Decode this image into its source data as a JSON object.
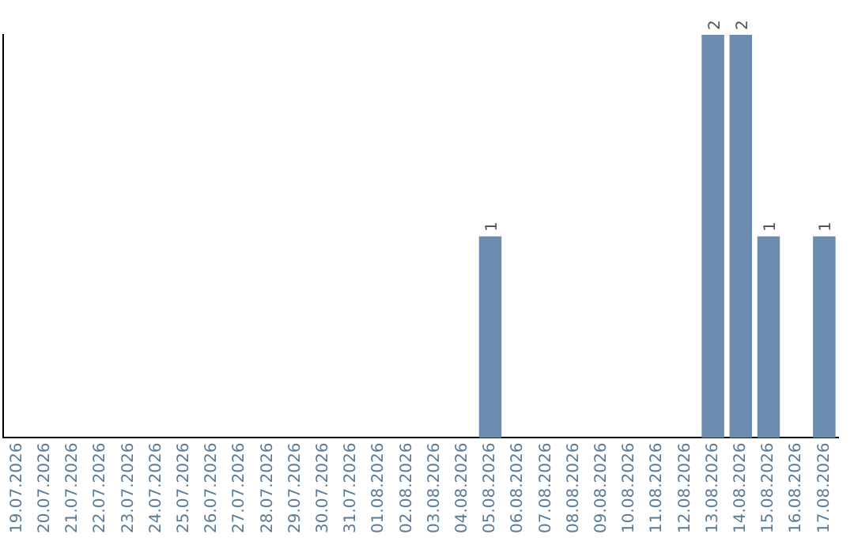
{
  "chart_data": {
    "type": "bar",
    "categories": [
      "19.07.2026",
      "20.07.2026",
      "21.07.2026",
      "22.07.2026",
      "23.07.2026",
      "24.07.2026",
      "25.07.2026",
      "26.07.2026",
      "27.07.2026",
      "28.07.2026",
      "29.07.2026",
      "30.07.2026",
      "31.07.2026",
      "01.08.2026",
      "02.08.2026",
      "03.08.2026",
      "04.08.2026",
      "05.08.2026",
      "06.08.2026",
      "07.08.2026",
      "08.08.2026",
      "09.08.2026",
      "10.08.2026",
      "11.08.2026",
      "12.08.2026",
      "13.08.2026",
      "14.08.2026",
      "15.08.2026",
      "16.08.2026",
      "17.08.2026"
    ],
    "values": [
      null,
      null,
      null,
      null,
      null,
      null,
      null,
      null,
      null,
      null,
      null,
      null,
      null,
      null,
      null,
      null,
      null,
      1,
      null,
      null,
      null,
      null,
      null,
      null,
      null,
      2,
      2,
      1,
      null,
      1
    ],
    "data_labels": true,
    "color": "#6b8cae",
    "grid": false,
    "legend": false,
    "tick_labels": "x"
  }
}
